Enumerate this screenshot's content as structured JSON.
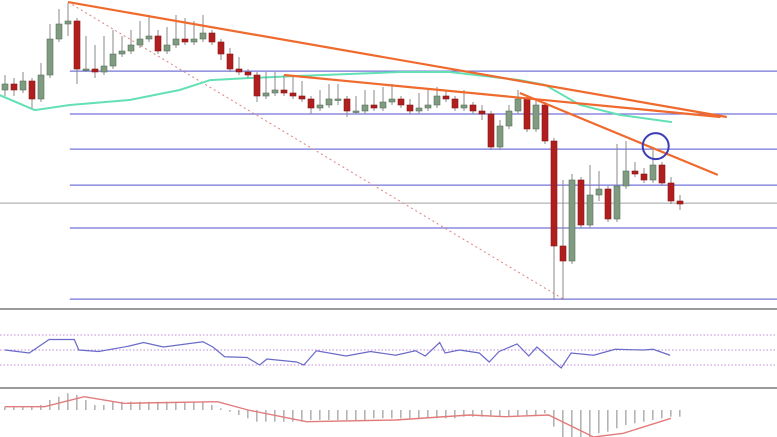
{
  "chart_data": {
    "type": "candlestick",
    "title": "",
    "xlabel": "",
    "ylabel": "",
    "ylim": [
      0,
      100
    ],
    "grid": false,
    "colors": {
      "bull": "#7f9c80",
      "bear": "#b01e1e",
      "wick": "#8a8a8a",
      "fib_levels": "#7474d8",
      "moving_average": "#63e0b4",
      "trendlines": "#ef6a2c",
      "highlight_circle": "#3c3cb4",
      "price_line": "#a0a0a0",
      "rsi_line": "#6a6ac8",
      "rsi_levels": "#c28ae0",
      "macd_histogram": "#b4b4b4",
      "macd_signal": "#e27c7c"
    },
    "candles": [
      [
        70,
        75,
        68,
        72
      ],
      [
        72,
        74,
        68,
        70
      ],
      [
        70,
        76,
        69,
        73
      ],
      [
        73,
        74,
        64,
        67
      ],
      [
        67,
        79,
        66,
        75
      ],
      [
        75,
        92,
        74,
        87
      ],
      [
        87,
        97,
        86,
        92
      ],
      [
        92,
        99,
        88,
        93
      ],
      [
        93,
        94,
        72,
        77
      ],
      [
        77,
        88,
        76,
        77
      ],
      [
        77,
        85,
        74,
        76
      ],
      [
        76,
        88,
        75,
        78
      ],
      [
        78,
        90,
        77,
        82
      ],
      [
        82,
        88,
        81,
        83
      ],
      [
        83,
        90,
        82,
        85
      ],
      [
        85,
        93,
        84,
        87
      ],
      [
        87,
        95,
        86,
        88
      ],
      [
        88,
        90,
        82,
        83
      ],
      [
        83,
        91,
        82,
        85
      ],
      [
        85,
        95,
        84,
        87
      ],
      [
        87,
        94,
        85,
        86
      ],
      [
        86,
        93,
        85,
        87
      ],
      [
        87,
        95,
        86,
        89
      ],
      [
        89,
        90,
        85,
        86
      ],
      [
        86,
        87,
        80,
        82
      ],
      [
        82,
        84,
        76,
        77
      ],
      [
        77,
        81,
        75,
        76
      ],
      [
        76,
        77,
        74,
        75
      ],
      [
        75,
        76,
        66,
        68
      ],
      [
        68,
        76,
        67,
        69
      ],
      [
        69,
        76,
        68,
        70
      ],
      [
        70,
        75,
        68,
        69
      ],
      [
        69,
        75,
        67,
        68
      ],
      [
        68,
        73,
        66,
        67
      ],
      [
        67,
        68,
        62,
        64
      ],
      [
        64,
        70,
        63,
        65
      ],
      [
        65,
        72,
        64,
        67
      ],
      [
        67,
        72,
        65,
        67
      ],
      [
        67,
        68,
        61,
        63
      ],
      [
        63,
        68,
        62,
        63
      ],
      [
        63,
        70,
        62,
        65
      ],
      [
        65,
        70,
        63,
        64
      ],
      [
        64,
        71,
        63,
        66
      ],
      [
        66,
        72,
        65,
        67
      ],
      [
        67,
        68,
        64,
        65
      ],
      [
        65,
        67,
        62,
        63
      ],
      [
        63,
        69,
        62,
        64
      ],
      [
        64,
        70,
        63,
        65
      ],
      [
        65,
        71,
        64,
        68
      ],
      [
        68,
        70,
        66,
        67
      ],
      [
        67,
        68,
        63,
        64
      ],
      [
        64,
        70,
        63,
        65
      ],
      [
        65,
        66,
        62,
        63
      ],
      [
        63,
        65,
        60,
        62
      ],
      [
        62,
        63,
        50,
        51
      ],
      [
        51,
        60,
        50,
        58
      ],
      [
        58,
        65,
        57,
        63
      ],
      [
        63,
        70,
        62,
        67
      ],
      [
        67,
        68,
        56,
        57
      ],
      [
        57,
        67,
        56,
        65
      ],
      [
        65,
        66,
        52,
        53
      ],
      [
        53,
        54,
        0,
        18
      ],
      [
        18,
        40,
        0,
        13
      ],
      [
        13,
        42,
        12,
        40
      ],
      [
        40,
        41,
        24,
        25
      ],
      [
        25,
        45,
        24,
        35
      ],
      [
        35,
        43,
        33,
        37
      ],
      [
        37,
        38,
        26,
        27
      ],
      [
        27,
        52,
        26,
        38
      ],
      [
        38,
        53,
        37,
        43
      ],
      [
        43,
        46,
        41,
        42
      ],
      [
        42,
        44,
        39,
        40
      ],
      [
        40,
        50,
        39,
        45
      ],
      [
        45,
        46,
        38,
        39
      ],
      [
        39,
        41,
        32,
        33
      ],
      [
        33,
        35,
        30,
        32
      ]
    ],
    "fib_levels": [
      76.3,
      62,
      50.3,
      38.3,
      24,
      0.3
    ],
    "fib_start_index": 7.2,
    "current_price": 32.3,
    "moving_average": [
      [
        -0.6,
        68.3
      ],
      [
        3.3,
        63.3
      ],
      [
        7.2,
        65
      ],
      [
        13.9,
        66.7
      ],
      [
        19.4,
        70
      ],
      [
        22.8,
        73.3
      ],
      [
        27.2,
        74
      ],
      [
        32.8,
        74.7
      ],
      [
        43.9,
        76
      ],
      [
        49.4,
        76
      ],
      [
        57.2,
        73.3
      ],
      [
        60,
        71.7
      ],
      [
        63.9,
        65
      ],
      [
        68.3,
        61.7
      ],
      [
        74.1,
        59.3
      ]
    ],
    "trendlines": [
      {
        "from": [
          7.0,
          99.3
        ],
        "to": [
          80.2,
          61
        ]
      },
      {
        "from": [
          31,
          75
        ],
        "to": [
          79.5,
          61
        ]
      },
      {
        "from": [
          57.2,
          69
        ],
        "to": [
          79.2,
          41.7
        ]
      }
    ],
    "dotted_line": {
      "from": [
        7.0,
        99.3
      ],
      "to": [
        62.2,
        0
      ]
    },
    "highlight_circle": [
      72.3,
      51.3
    ],
    "rsi": {
      "levels": [
        70,
        50,
        30
      ],
      "values": [
        [
          0,
          50
        ],
        [
          2.7,
          46
        ],
        [
          4.9,
          64
        ],
        [
          7.7,
          64
        ],
        [
          8.2,
          50
        ],
        [
          10.4,
          48
        ],
        [
          13.7,
          55
        ],
        [
          15.4,
          60
        ],
        [
          17.6,
          54
        ],
        [
          22,
          61
        ],
        [
          23.1,
          54
        ],
        [
          24.4,
          41
        ],
        [
          26.9,
          40
        ],
        [
          28.3,
          30
        ],
        [
          29.1,
          38
        ],
        [
          32.4,
          34
        ],
        [
          33.2,
          30
        ],
        [
          34.6,
          49
        ],
        [
          37.9,
          42
        ],
        [
          40.6,
          48
        ],
        [
          43.4,
          43
        ],
        [
          45.6,
          49
        ],
        [
          46.7,
          42
        ],
        [
          48.3,
          60
        ],
        [
          48.9,
          46
        ],
        [
          50.5,
          50
        ],
        [
          52.7,
          46
        ],
        [
          53.8,
          34
        ],
        [
          54.9,
          48
        ],
        [
          56.9,
          58
        ],
        [
          58.2,
          42
        ],
        [
          59.1,
          54
        ],
        [
          61,
          34
        ],
        [
          61.8,
          26
        ],
        [
          62.9,
          46
        ],
        [
          65.4,
          43
        ],
        [
          67.8,
          51
        ],
        [
          70.9,
          50
        ],
        [
          72,
          51
        ],
        [
          73.9,
          43
        ]
      ]
    },
    "macd": {
      "histogram": [
        0.33,
        0.33,
        0.33,
        0.33,
        0.5,
        1.0,
        1.33,
        1.67,
        1.5,
        1.0,
        0.5,
        0.5,
        0.83,
        0.83,
        0.83,
        0.83,
        0.83,
        0.83,
        0.83,
        0.83,
        0.83,
        0.83,
        0.83,
        0.5,
        0.17,
        -0.17,
        -0.5,
        -0.83,
        -1.17,
        -1.17,
        -1.17,
        -1.17,
        -1.17,
        -1.17,
        -1.0,
        -1.0,
        -1.0,
        -1.0,
        -1.0,
        -1.0,
        -1.0,
        -0.83,
        -0.83,
        -0.83,
        -0.83,
        -0.83,
        -0.83,
        -0.83,
        -0.83,
        -0.83,
        -0.83,
        -0.67,
        -0.67,
        -0.67,
        -0.67,
        -0.67,
        -0.67,
        -0.67,
        -0.5,
        -0.5,
        -0.33,
        -1.67,
        -2.7,
        -3.0,
        -3.0,
        -2.83,
        -2.33,
        -2.17,
        -1.83,
        -1.5,
        -1.33,
        -1.17,
        -1.0,
        -0.83,
        -0.67,
        -0.67
      ],
      "signal": [
        [
          0,
          0.33
        ],
        [
          4.4,
          0.33
        ],
        [
          8.8,
          1.33
        ],
        [
          13.2,
          0.67
        ],
        [
          23.6,
          0.83
        ],
        [
          27,
          0
        ],
        [
          33.5,
          -1.17
        ],
        [
          43.4,
          -1.0
        ],
        [
          51.6,
          -0.5
        ],
        [
          55.5,
          -0.67
        ],
        [
          60.4,
          -0.5
        ],
        [
          65.4,
          -2.7
        ],
        [
          68.7,
          -2.33
        ],
        [
          74,
          -0.83
        ]
      ]
    }
  }
}
